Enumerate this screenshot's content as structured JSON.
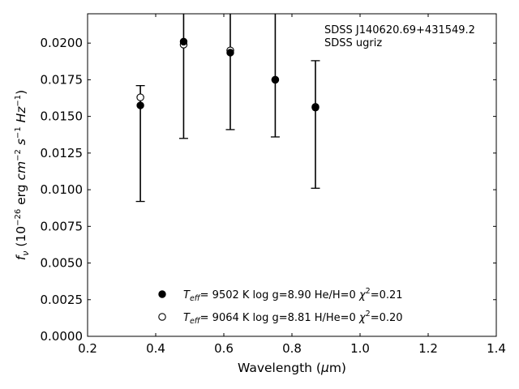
{
  "chart_data": {
    "type": "scatter",
    "title": "",
    "xlabel": "Wavelength (μm)",
    "ylabel": "f_ν (10^-26 erg cm^-2 s^-1 Hz^-1)",
    "xlim": [
      0.2,
      1.4
    ],
    "ylim": [
      0.0,
      0.022
    ],
    "x_ticks": [
      0.2,
      0.4,
      0.6,
      0.8,
      1.0,
      1.2,
      1.4
    ],
    "x_tick_labels": [
      "0.2",
      "0.4",
      "0.6",
      "0.8",
      "1.0",
      "1.2",
      "1.4"
    ],
    "y_ticks": [
      0.0,
      0.0025,
      0.005,
      0.0075,
      0.01,
      0.0125,
      0.015,
      0.0175,
      0.02
    ],
    "y_tick_labels": [
      "0.0000",
      "0.0025",
      "0.0050",
      "0.0075",
      "0.0100",
      "0.0125",
      "0.0150",
      "0.0175",
      "0.0200"
    ],
    "grid": false,
    "legend_position": "bottom-center",
    "annotations": [
      "SDSS J140620.69+431549.2",
      "SDSS ugriz"
    ],
    "observed": {
      "x": [
        0.355,
        0.482,
        0.619,
        0.751,
        0.869
      ],
      "y": [
        0.01575,
        0.0201,
        0.01935,
        0.0175,
        0.0156
      ],
      "yerr_low": [
        0.0092,
        0.0135,
        0.0141,
        0.0136,
        0.0101
      ],
      "yerr_high": [
        0.0171,
        0.0235,
        0.0235,
        0.0235,
        0.0188
      ]
    },
    "series": [
      {
        "name": "Teff= 9502 K log g=8.90 He/H=0 χ2=0.21",
        "marker": "filled-circle",
        "x": [
          0.355,
          0.482,
          0.619,
          0.751,
          0.869
        ],
        "y": [
          0.01575,
          0.0201,
          0.01935,
          0.0175,
          0.0156
        ]
      },
      {
        "name": "Teff= 9064 K log g=8.81 H/He=0 χ2=0.20",
        "marker": "open-circle",
        "x": [
          0.355,
          0.482,
          0.619,
          0.751,
          0.869
        ],
        "y": [
          0.0163,
          0.0199,
          0.0195,
          0.0175,
          0.01565
        ]
      }
    ],
    "legend": [
      {
        "teff": "9502",
        "logg": "8.90",
        "comp_label": "He/H",
        "comp_value": "0",
        "chi2": "0.21"
      },
      {
        "teff": "9064",
        "logg": "8.81",
        "comp_label": "H/He",
        "comp_value": "0",
        "chi2": "0.20"
      }
    ],
    "colors": {
      "markers": "#000000",
      "errorbars": "#000000",
      "axes": "#000000"
    }
  }
}
